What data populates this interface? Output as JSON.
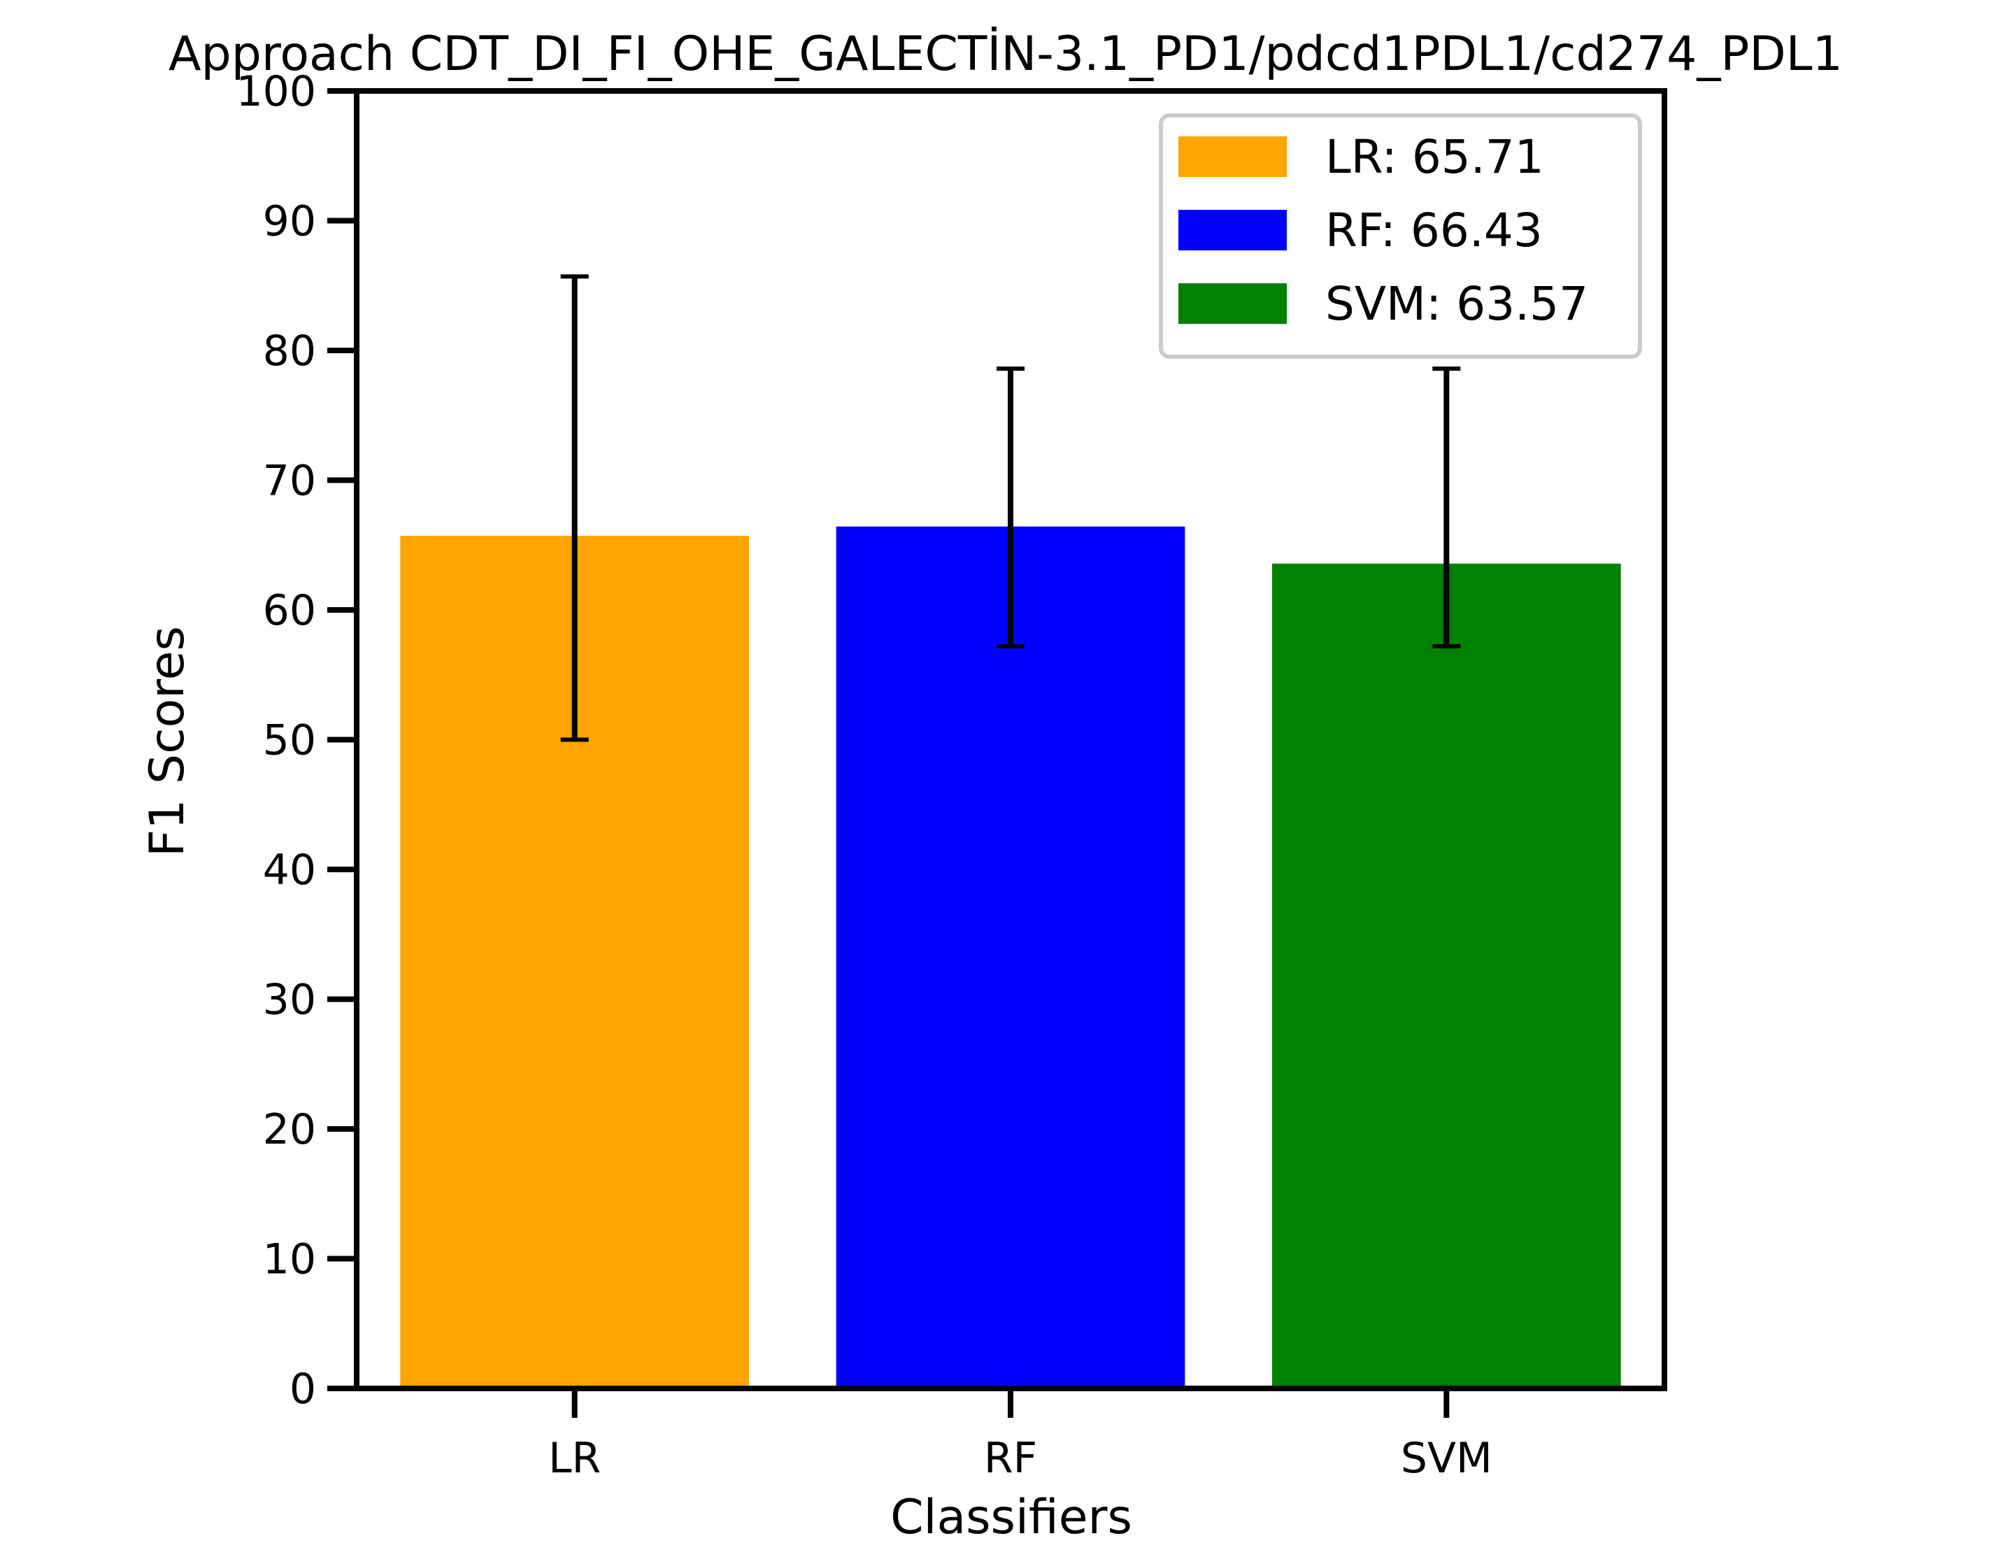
{
  "chart_data": {
    "type": "bar",
    "title": "Approach CDT_DI_FI_OHE_GALECTİN-3.1_PD1/pdcd1PDL1/cd274_PDL1",
    "xlabel": "Classifiers",
    "ylabel": "F1 Scores",
    "ylim": [
      0,
      100
    ],
    "yticks": [
      0,
      10,
      20,
      30,
      40,
      50,
      60,
      70,
      80,
      90,
      100
    ],
    "categories": [
      "LR",
      "RF",
      "SVM"
    ],
    "values": [
      65.71,
      66.43,
      63.57
    ],
    "errors": [
      [
        50.0,
        85.7
      ],
      [
        57.2,
        78.6
      ],
      [
        57.2,
        78.6
      ]
    ],
    "colors": [
      "#ffa500",
      "#0000ff",
      "#008000"
    ],
    "legend": {
      "placement": "top-right",
      "entries": [
        "LR: 65.71",
        "RF: 66.43",
        "SVM: 63.57"
      ]
    },
    "grid": false
  }
}
